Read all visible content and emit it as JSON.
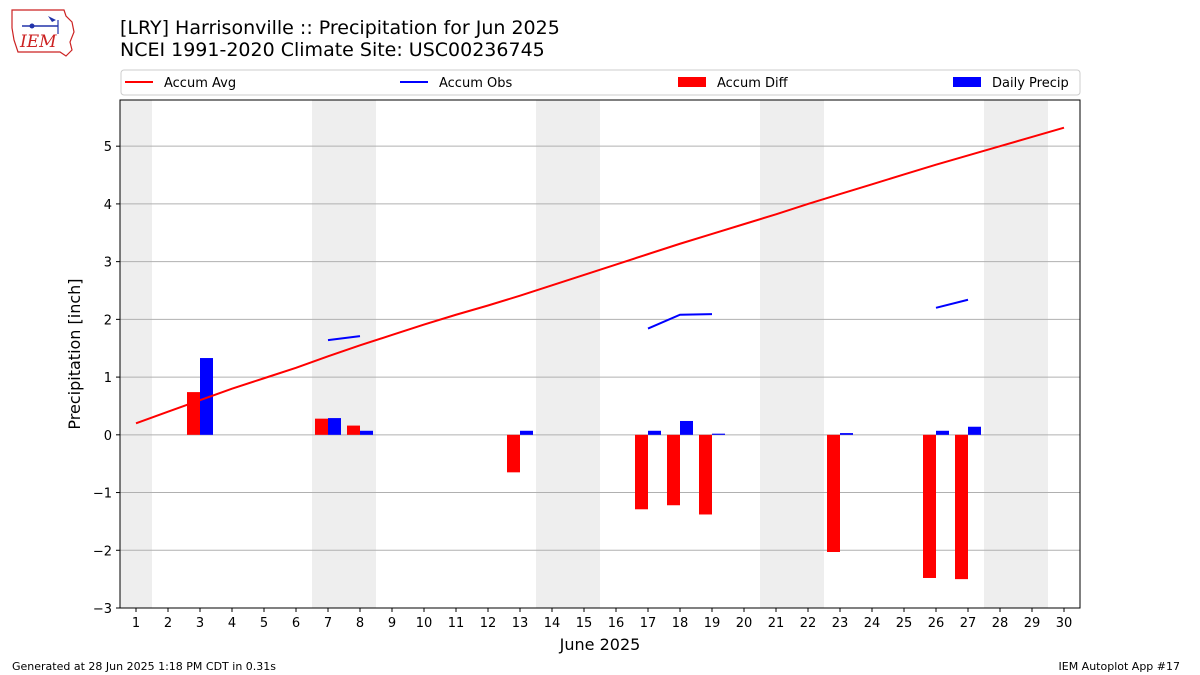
{
  "header": {
    "title_line1": "[LRY] Harrisonville :: Precipitation for Jun 2025",
    "title_line2": "NCEI 1991-2020 Climate Site: USC00236745"
  },
  "logo": {
    "text": "IEM",
    "color": "#cc2222"
  },
  "footer": {
    "left": "Generated at 28 Jun 2025 1:18 PM CDT in 0.31s",
    "right": "IEM Autoplot App #17"
  },
  "chart_data": {
    "type": "bar",
    "xlabel": "June 2025",
    "ylabel": "Precipitation [inch]",
    "xlim": [
      0.5,
      30.5
    ],
    "ylim": [
      -3,
      5.8
    ],
    "yticks": [
      -3,
      -2,
      -1,
      0,
      1,
      2,
      3,
      4,
      5
    ],
    "ytick_labels": [
      "−3",
      "−2",
      "−1",
      "0",
      "1",
      "2",
      "3",
      "4",
      "5"
    ],
    "xticks": [
      1,
      2,
      3,
      4,
      5,
      6,
      7,
      8,
      9,
      10,
      11,
      12,
      13,
      14,
      15,
      16,
      17,
      18,
      19,
      20,
      21,
      22,
      23,
      24,
      25,
      26,
      27,
      28,
      29,
      30
    ],
    "xtick_labels": [
      "1",
      "2",
      "3",
      "4",
      "5",
      "6",
      "7",
      "8",
      "9",
      "10",
      "11",
      "12",
      "13",
      "14",
      "15",
      "16",
      "17",
      "18",
      "19",
      "20",
      "21",
      "22",
      "23",
      "24",
      "25",
      "26",
      "27",
      "28",
      "29",
      "30"
    ],
    "grid": "horizontal",
    "weekend_shading": [
      [
        0.5,
        1.5
      ],
      [
        6.5,
        8.5
      ],
      [
        13.5,
        15.5
      ],
      [
        20.5,
        22.5
      ],
      [
        27.5,
        29.5
      ]
    ],
    "shade_color": "#eeeeee",
    "legend": {
      "placement": "top",
      "entries": [
        {
          "label": "Accum Avg",
          "kind": "line",
          "color": "#ff0000"
        },
        {
          "label": "Accum Obs",
          "kind": "line",
          "color": "#0000ff"
        },
        {
          "label": "Accum Diff",
          "kind": "bar",
          "color": "#ff0000"
        },
        {
          "label": "Daily Precip",
          "kind": "bar",
          "color": "#0000ff"
        }
      ]
    },
    "series": [
      {
        "name": "Accum Avg",
        "kind": "line",
        "color": "#ff0000",
        "x": [
          1,
          2,
          3,
          4,
          5,
          6,
          7,
          8,
          9,
          10,
          11,
          12,
          13,
          14,
          15,
          16,
          17,
          18,
          19,
          20,
          21,
          22,
          23,
          24,
          25,
          26,
          27,
          28,
          29,
          30
        ],
        "values": [
          0.2,
          0.4,
          0.6,
          0.8,
          0.98,
          1.16,
          1.36,
          1.55,
          1.73,
          1.91,
          2.08,
          2.24,
          2.41,
          2.59,
          2.77,
          2.95,
          3.13,
          3.31,
          3.48,
          3.65,
          3.82,
          4.0,
          4.17,
          4.34,
          4.51,
          4.68,
          4.84,
          5.0,
          5.16,
          5.32
        ]
      },
      {
        "name": "Accum Obs",
        "kind": "line",
        "color": "#0000ff",
        "segments": [
          {
            "x": [
              7,
              8
            ],
            "values": [
              1.64,
              1.71
            ]
          },
          {
            "x": [
              17,
              18,
              19
            ],
            "values": [
              1.84,
              2.08,
              2.09
            ]
          },
          {
            "x": [
              26,
              27
            ],
            "values": [
              2.2,
              2.34
            ]
          }
        ]
      },
      {
        "name": "Accum Diff",
        "kind": "bar",
        "color": "#ff0000",
        "x": [
          3,
          7,
          8,
          13,
          17,
          18,
          19,
          23,
          26,
          27
        ],
        "values": [
          0.74,
          0.28,
          0.16,
          -0.65,
          -1.29,
          -1.22,
          -1.38,
          -2.03,
          -2.48,
          -2.5
        ]
      },
      {
        "name": "Daily Precip",
        "kind": "bar",
        "color": "#0000ff",
        "x": [
          3,
          7,
          8,
          13,
          17,
          18,
          19,
          23,
          26,
          27
        ],
        "values": [
          1.33,
          0.29,
          0.07,
          0.07,
          0.07,
          0.24,
          0.02,
          0.03,
          0.07,
          0.14
        ]
      }
    ]
  }
}
